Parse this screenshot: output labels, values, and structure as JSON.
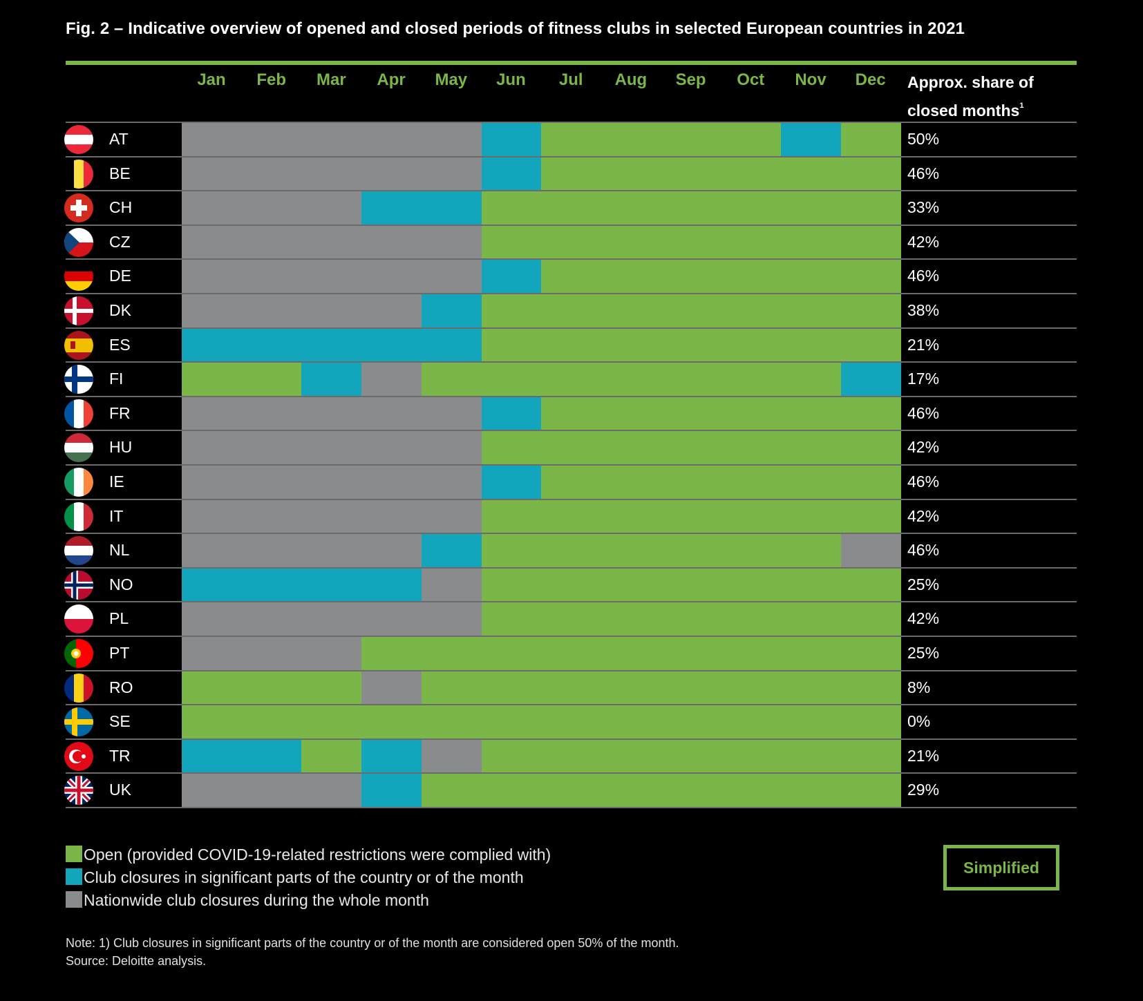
{
  "title": "Fig. 2 – Indicative overview of opened and closed periods of fitness clubs in selected European countries in 2021",
  "share_header_line1": "Approx. share of",
  "share_header_line2": "closed months",
  "share_header_sup": "1",
  "colors": {
    "open": "#7ab648",
    "partial": "#13a5bb",
    "closed": "#8a8b8d",
    "accent": "#7ab648"
  },
  "chart_data": {
    "type": "table",
    "months": [
      "Jan",
      "Feb",
      "Mar",
      "Apr",
      "May",
      "Jun",
      "Jul",
      "Aug",
      "Sep",
      "Oct",
      "Nov",
      "Dec"
    ],
    "status_codes": {
      "O": "Open (provided COVID-19-related restrictions were complied with)",
      "P": "Club closures in significant parts of the country or of the month",
      "C": "Nationwide club closures during the whole month"
    },
    "rows": [
      {
        "code": "AT",
        "flag": "austria-flag-icon",
        "status": [
          "C",
          "C",
          "C",
          "C",
          "C",
          "P",
          "O",
          "O",
          "O",
          "O",
          "P",
          "O"
        ],
        "share": "50%"
      },
      {
        "code": "BE",
        "flag": "belgium-flag-icon",
        "status": [
          "C",
          "C",
          "C",
          "C",
          "C",
          "P",
          "O",
          "O",
          "O",
          "O",
          "O",
          "O"
        ],
        "share": "46%"
      },
      {
        "code": "CH",
        "flag": "switzerland-flag-icon",
        "status": [
          "C",
          "C",
          "C",
          "P",
          "P",
          "O",
          "O",
          "O",
          "O",
          "O",
          "O",
          "O"
        ],
        "share": "33%"
      },
      {
        "code": "CZ",
        "flag": "czechia-flag-icon",
        "status": [
          "C",
          "C",
          "C",
          "C",
          "C",
          "O",
          "O",
          "O",
          "O",
          "O",
          "O",
          "O"
        ],
        "share": "42%"
      },
      {
        "code": "DE",
        "flag": "germany-flag-icon",
        "status": [
          "C",
          "C",
          "C",
          "C",
          "C",
          "P",
          "O",
          "O",
          "O",
          "O",
          "O",
          "O"
        ],
        "share": "46%"
      },
      {
        "code": "DK",
        "flag": "denmark-flag-icon",
        "status": [
          "C",
          "C",
          "C",
          "C",
          "P",
          "O",
          "O",
          "O",
          "O",
          "O",
          "O",
          "O"
        ],
        "share": "38%"
      },
      {
        "code": "ES",
        "flag": "spain-flag-icon",
        "status": [
          "P",
          "P",
          "P",
          "P",
          "P",
          "O",
          "O",
          "O",
          "O",
          "O",
          "O",
          "O"
        ],
        "share": "21%"
      },
      {
        "code": "FI",
        "flag": "finland-flag-icon",
        "status": [
          "O",
          "O",
          "P",
          "C",
          "O",
          "O",
          "O",
          "O",
          "O",
          "O",
          "O",
          "P"
        ],
        "share": "17%"
      },
      {
        "code": "FR",
        "flag": "france-flag-icon",
        "status": [
          "C",
          "C",
          "C",
          "C",
          "C",
          "P",
          "O",
          "O",
          "O",
          "O",
          "O",
          "O"
        ],
        "share": "46%"
      },
      {
        "code": "HU",
        "flag": "hungary-flag-icon",
        "status": [
          "C",
          "C",
          "C",
          "C",
          "C",
          "O",
          "O",
          "O",
          "O",
          "O",
          "O",
          "O"
        ],
        "share": "42%"
      },
      {
        "code": "IE",
        "flag": "ireland-flag-icon",
        "status": [
          "C",
          "C",
          "C",
          "C",
          "C",
          "P",
          "O",
          "O",
          "O",
          "O",
          "O",
          "O"
        ],
        "share": "46%"
      },
      {
        "code": "IT",
        "flag": "italy-flag-icon",
        "status": [
          "C",
          "C",
          "C",
          "C",
          "C",
          "O",
          "O",
          "O",
          "O",
          "O",
          "O",
          "O"
        ],
        "share": "42%"
      },
      {
        "code": "NL",
        "flag": "netherlands-flag-icon",
        "status": [
          "C",
          "C",
          "C",
          "C",
          "P",
          "O",
          "O",
          "O",
          "O",
          "O",
          "O",
          "C"
        ],
        "share": "46%"
      },
      {
        "code": "NO",
        "flag": "norway-flag-icon",
        "status": [
          "P",
          "P",
          "P",
          "P",
          "C",
          "O",
          "O",
          "O",
          "O",
          "O",
          "O",
          "O"
        ],
        "share": "25%"
      },
      {
        "code": "PL",
        "flag": "poland-flag-icon",
        "status": [
          "C",
          "C",
          "C",
          "C",
          "C",
          "O",
          "O",
          "O",
          "O",
          "O",
          "O",
          "O"
        ],
        "share": "42%"
      },
      {
        "code": "PT",
        "flag": "portugal-flag-icon",
        "status": [
          "C",
          "C",
          "C",
          "O",
          "O",
          "O",
          "O",
          "O",
          "O",
          "O",
          "O",
          "O"
        ],
        "share": "25%"
      },
      {
        "code": "RO",
        "flag": "romania-flag-icon",
        "status": [
          "O",
          "O",
          "O",
          "C",
          "O",
          "O",
          "O",
          "O",
          "O",
          "O",
          "O",
          "O"
        ],
        "share": "8%"
      },
      {
        "code": "SE",
        "flag": "sweden-flag-icon",
        "status": [
          "O",
          "O",
          "O",
          "O",
          "O",
          "O",
          "O",
          "O",
          "O",
          "O",
          "O",
          "O"
        ],
        "share": "0%"
      },
      {
        "code": "TR",
        "flag": "turkey-flag-icon",
        "status": [
          "P",
          "P",
          "O",
          "P",
          "C",
          "O",
          "O",
          "O",
          "O",
          "O",
          "O",
          "O"
        ],
        "share": "21%"
      },
      {
        "code": "UK",
        "flag": "uk-flag-icon",
        "status": [
          "C",
          "C",
          "C",
          "P",
          "O",
          "O",
          "O",
          "O",
          "O",
          "O",
          "O",
          "O"
        ],
        "share": "29%"
      }
    ]
  },
  "legend": [
    {
      "key": "O",
      "label": "Open (provided COVID-19-related restrictions were complied with)"
    },
    {
      "key": "P",
      "label": "Club closures in significant parts of the country or of the month"
    },
    {
      "key": "C",
      "label": "Nationwide club closures during the whole month"
    }
  ],
  "badge": "Simplified",
  "note": "Note: 1) Club closures in significant parts of the country or of the month are considered open 50% of the month.",
  "source": "Source: Deloitte analysis."
}
